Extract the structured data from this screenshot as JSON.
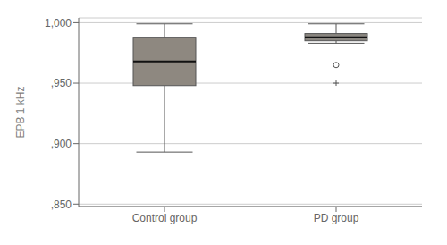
{
  "chart_data": {
    "type": "box",
    "categories": [
      "Control group",
      "PD group"
    ],
    "whisker_low": [
      0.893,
      0.983
    ],
    "q1": [
      0.948,
      0.985
    ],
    "median": [
      0.968,
      0.988
    ],
    "q3": [
      0.988,
      0.991
    ],
    "whisker_high": [
      0.999,
      0.999
    ],
    "outliers": [
      [],
      [
        0.965
      ]
    ],
    "far_outliers": [
      [],
      [
        0.95
      ]
    ],
    "ylabel": "EPB 1 kHz",
    "ylim": [
      0.848,
      1.004
    ],
    "yticks": [
      {
        "value": 0.85,
        "label": ",850"
      },
      {
        "value": 0.9,
        "label": ",900"
      },
      {
        "value": 0.95,
        "label": ",950"
      },
      {
        "value": 1.0,
        "label": "1,000"
      }
    ],
    "grid": true,
    "colors": [
      "#8e8880",
      "#8a8680"
    ]
  }
}
